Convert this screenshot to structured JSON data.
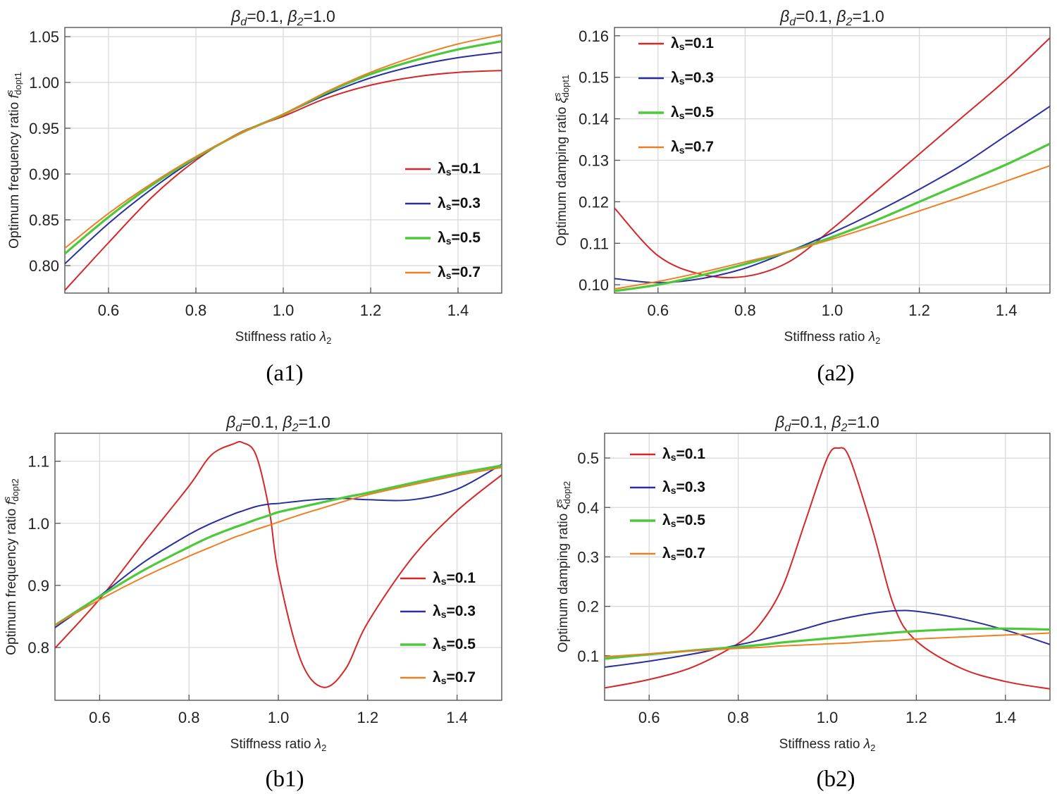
{
  "colors": {
    "s1": "#d62728",
    "s3": "#2b2e9e",
    "s5": "#4cc83a",
    "s7": "#ee7f22"
  },
  "legend_entries": [
    "λs=0.1",
    "λs=0.3",
    "λs=0.5",
    "λs=0.7"
  ],
  "chart_data": [
    {
      "id": "a1",
      "type": "line",
      "caption": "(a1)",
      "title": "βd=0.1,    β2=1.0",
      "xlabel": "Stiffness ratio λ2",
      "ylabel": "Optimum frequency ratio f s dopt1",
      "xlim": [
        0.5,
        1.5
      ],
      "ylim": [
        0.77,
        1.06
      ],
      "xticks": [
        0.6,
        0.8,
        1.0,
        1.2,
        1.4
      ],
      "yticks": [
        0.8,
        0.85,
        0.9,
        0.95,
        1.0,
        1.05
      ],
      "legend_position": "lower-right",
      "x": [
        0.5,
        0.6,
        0.7,
        0.8,
        0.9,
        1.0,
        1.1,
        1.2,
        1.3,
        1.4,
        1.5
      ],
      "series": [
        {
          "name": "λs=0.1",
          "values": [
            0.773,
            0.825,
            0.875,
            0.915,
            0.945,
            0.963,
            0.983,
            0.997,
            1.006,
            1.011,
            1.013
          ]
        },
        {
          "name": "λs=0.3",
          "values": [
            0.802,
            0.846,
            0.884,
            0.917,
            0.944,
            0.965,
            0.987,
            1.005,
            1.018,
            1.027,
            1.033
          ]
        },
        {
          "name": "λs=0.5",
          "values": [
            0.813,
            0.853,
            0.888,
            0.918,
            0.944,
            0.965,
            0.989,
            1.009,
            1.024,
            1.036,
            1.045
          ]
        },
        {
          "name": "λs=0.7",
          "values": [
            0.819,
            0.857,
            0.89,
            0.919,
            0.944,
            0.965,
            0.99,
            1.011,
            1.028,
            1.042,
            1.052
          ]
        }
      ]
    },
    {
      "id": "a2",
      "type": "line",
      "caption": "(a2)",
      "title": "βd=0.1,    β2=1.0",
      "xlabel": "Stiffness ratio λ2",
      "ylabel": "Optimum damping ratio ξ s dopt1",
      "xlim": [
        0.5,
        1.5
      ],
      "ylim": [
        0.098,
        0.162
      ],
      "xticks": [
        0.6,
        0.8,
        1.0,
        1.2,
        1.4
      ],
      "yticks": [
        0.1,
        0.11,
        0.12,
        0.13,
        0.14,
        0.15,
        0.16
      ],
      "legend_position": "upper-left",
      "x": [
        0.5,
        0.6,
        0.7,
        0.8,
        0.9,
        1.0,
        1.1,
        1.2,
        1.3,
        1.4,
        1.5
      ],
      "series": [
        {
          "name": "λs=0.1",
          "values": [
            0.1185,
            0.107,
            0.1025,
            0.102,
            0.1055,
            0.1135,
            0.1225,
            0.1315,
            0.1405,
            0.1495,
            0.1595
          ]
        },
        {
          "name": "λs=0.3",
          "values": [
            0.1015,
            0.1005,
            0.1015,
            0.104,
            0.108,
            0.1125,
            0.1175,
            0.123,
            0.129,
            0.136,
            0.143
          ]
        },
        {
          "name": "λs=0.5",
          "values": [
            0.0985,
            0.1,
            0.1023,
            0.105,
            0.108,
            0.1115,
            0.1155,
            0.12,
            0.1245,
            0.129,
            0.134
          ]
        },
        {
          "name": "λs=0.7",
          "values": [
            0.099,
            0.1008,
            0.103,
            0.1055,
            0.108,
            0.111,
            0.1143,
            0.1178,
            0.1213,
            0.125,
            0.1287
          ]
        }
      ]
    },
    {
      "id": "b1",
      "type": "line",
      "caption": "(b1)",
      "title": "βd=0.1,    β2=1.0",
      "xlabel": "Stiffness ratio λ2",
      "ylabel": "Optimum frequency ratio f s dopt2",
      "xlim": [
        0.5,
        1.5
      ],
      "ylim": [
        0.715,
        1.145
      ],
      "xticks": [
        0.6,
        0.8,
        1.0,
        1.2,
        1.4
      ],
      "yticks": [
        0.8,
        0.9,
        1.0,
        1.1
      ],
      "legend_position": "lower-right",
      "x": [
        0.5,
        0.6,
        0.7,
        0.8,
        0.85,
        0.9,
        0.92,
        0.95,
        0.98,
        1.0,
        1.05,
        1.1,
        1.15,
        1.2,
        1.3,
        1.4,
        1.5
      ],
      "series": [
        {
          "name": "λs=0.1",
          "values": [
            0.799,
            0.878,
            0.97,
            1.06,
            1.11,
            1.128,
            1.13,
            1.11,
            1.02,
            0.92,
            0.78,
            0.736,
            0.765,
            0.84,
            0.945,
            1.02,
            1.078
          ]
        },
        {
          "name": "λs=0.3",
          "values": [
            0.832,
            0.883,
            0.938,
            0.982,
            1.0,
            1.015,
            1.02,
            1.027,
            1.031,
            1.032,
            1.036,
            1.039,
            1.04,
            1.038,
            1.038,
            1.055,
            1.095
          ]
        },
        {
          "name": "λs=0.5",
          "values": [
            0.836,
            0.882,
            0.925,
            0.962,
            0.979,
            0.993,
            0.998,
            1.006,
            1.013,
            1.018,
            1.026,
            1.034,
            1.042,
            1.049,
            1.065,
            1.08,
            1.093
          ]
        },
        {
          "name": "λs=0.7",
          "values": [
            0.836,
            0.877,
            0.914,
            0.947,
            0.962,
            0.977,
            0.982,
            0.99,
            0.997,
            1.002,
            1.014,
            1.025,
            1.036,
            1.046,
            1.062,
            1.077,
            1.09
          ]
        }
      ]
    },
    {
      "id": "b2",
      "type": "line",
      "caption": "(b2)",
      "title": "βd=0.1,    β2=1.0",
      "xlabel": "Stiffness ratio λ2",
      "ylabel": "Optimum damping ratio ξ s dopt2",
      "xlim": [
        0.5,
        1.5
      ],
      "ylim": [
        0.01,
        0.55
      ],
      "xticks": [
        0.6,
        0.8,
        1.0,
        1.2,
        1.4
      ],
      "yticks": [
        0.1,
        0.2,
        0.3,
        0.4,
        0.5
      ],
      "legend_position": "upper-left",
      "x": [
        0.5,
        0.6,
        0.7,
        0.8,
        0.85,
        0.9,
        0.95,
        1.0,
        1.025,
        1.05,
        1.1,
        1.15,
        1.2,
        1.3,
        1.4,
        1.5
      ],
      "series": [
        {
          "name": "λs=0.1",
          "values": [
            0.035,
            0.052,
            0.078,
            0.125,
            0.165,
            0.24,
            0.37,
            0.5,
            0.52,
            0.5,
            0.36,
            0.2,
            0.13,
            0.075,
            0.048,
            0.033
          ]
        },
        {
          "name": "λs=0.3",
          "values": [
            0.077,
            0.089,
            0.104,
            0.122,
            0.132,
            0.143,
            0.155,
            0.168,
            0.173,
            0.178,
            0.186,
            0.191,
            0.19,
            0.175,
            0.152,
            0.123
          ]
        },
        {
          "name": "λs=0.5",
          "values": [
            0.094,
            0.103,
            0.111,
            0.118,
            0.122,
            0.127,
            0.131,
            0.135,
            0.137,
            0.139,
            0.143,
            0.147,
            0.15,
            0.154,
            0.155,
            0.153
          ]
        },
        {
          "name": "λs=0.7",
          "values": [
            0.098,
            0.104,
            0.11,
            0.115,
            0.117,
            0.12,
            0.122,
            0.124,
            0.125,
            0.126,
            0.129,
            0.131,
            0.134,
            0.138,
            0.142,
            0.146
          ]
        }
      ]
    }
  ]
}
